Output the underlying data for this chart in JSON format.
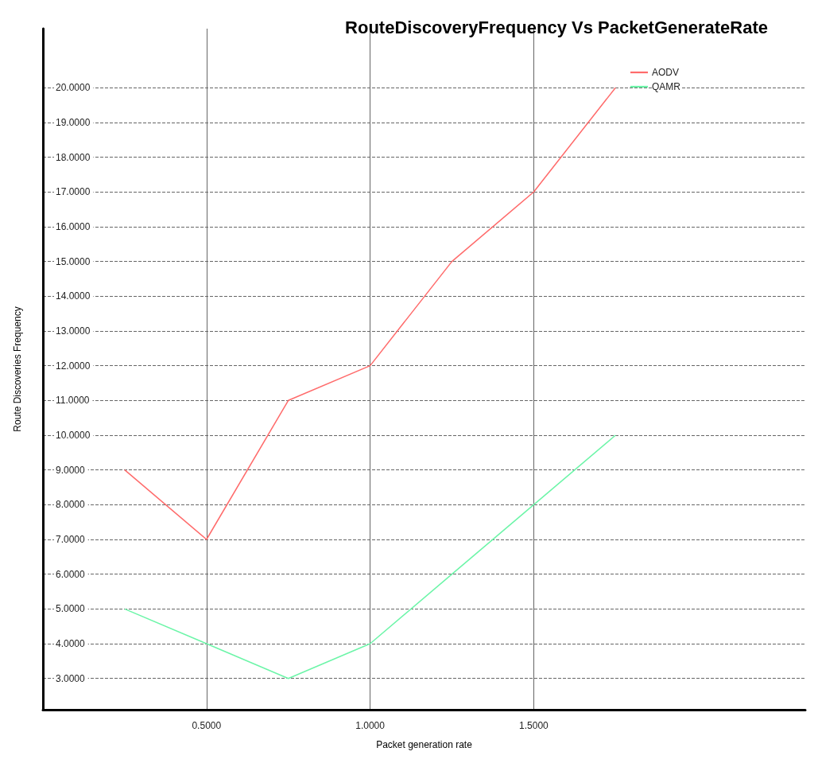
{
  "chart_data": {
    "type": "line",
    "title": "RouteDiscoveryFrequency Vs PacketGenerateRate",
    "xlabel": "Packet generation rate",
    "ylabel": "Route Discoveries Frequency",
    "x": [
      0.25,
      0.5,
      0.75,
      1.0,
      1.25,
      1.5,
      1.75
    ],
    "series": [
      {
        "name": "AODV",
        "color": "#ff6b6b",
        "values": [
          9,
          7,
          11,
          12,
          15,
          17,
          20
        ]
      },
      {
        "name": "QAMR",
        "color": "#6cf5a8",
        "values": [
          5,
          4,
          3,
          4,
          6,
          8,
          10
        ]
      }
    ],
    "xlim": [
      0,
      2.33
    ],
    "xticks": [
      {
        "value": 0.5,
        "label": "0.5000"
      },
      {
        "value": 1.0,
        "label": "1.0000"
      },
      {
        "value": 1.5,
        "label": "1.5000"
      }
    ],
    "ylim": [
      2.1,
      21.7
    ],
    "yticks": [
      {
        "value": 3,
        "label": "3.0000"
      },
      {
        "value": 4,
        "label": "4.0000"
      },
      {
        "value": 5,
        "label": "5.0000"
      },
      {
        "value": 6,
        "label": "6.0000"
      },
      {
        "value": 7,
        "label": "7.0000"
      },
      {
        "value": 8,
        "label": "8.0000"
      },
      {
        "value": 9,
        "label": "9.0000"
      },
      {
        "value": 10,
        "label": "10.0000"
      },
      {
        "value": 11,
        "label": "11.0000"
      },
      {
        "value": 12,
        "label": "12.0000"
      },
      {
        "value": 13,
        "label": "13.0000"
      },
      {
        "value": 14,
        "label": "14.0000"
      },
      {
        "value": 15,
        "label": "15.0000"
      },
      {
        "value": 16,
        "label": "16.0000"
      },
      {
        "value": 17,
        "label": "17.0000"
      },
      {
        "value": 18,
        "label": "18.0000"
      },
      {
        "value": 19,
        "label": "19.0000"
      },
      {
        "value": 20,
        "label": "20.0000"
      }
    ],
    "grid": true,
    "legend": "top right",
    "marker": "none",
    "line_style": "solid"
  }
}
